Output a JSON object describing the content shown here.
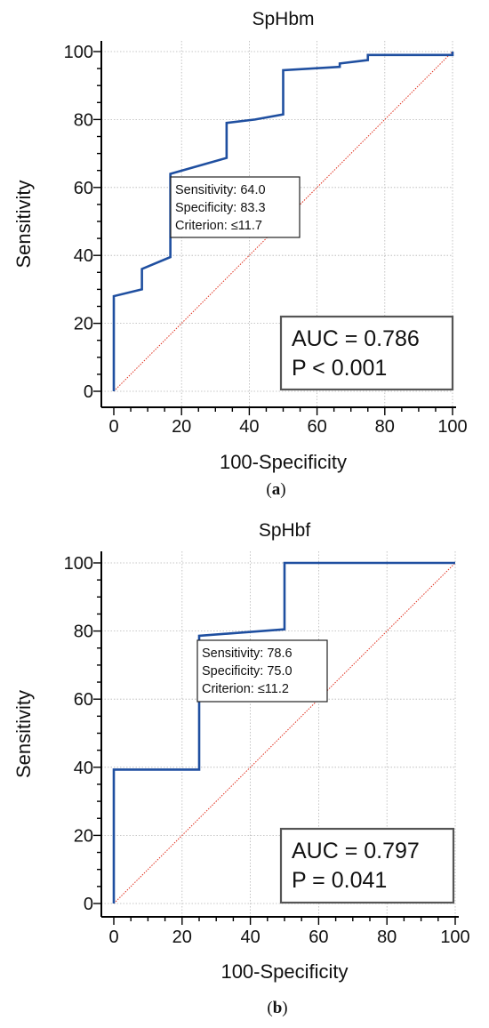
{
  "chart_data": [
    {
      "type": "line",
      "title": "SpHbm",
      "panel_label": "a",
      "xlabel": "100-Specificity",
      "ylabel": "Sensitivity",
      "xlim": [
        0,
        100
      ],
      "ylim": [
        0,
        100
      ],
      "xticks": [
        "0",
        "20",
        "40",
        "60",
        "80",
        "100"
      ],
      "yticks": [
        "0",
        "20",
        "40",
        "60",
        "80",
        "100"
      ],
      "grid": true,
      "series": [
        {
          "role": "roc",
          "color": "#1f4fa0",
          "x": [
            0,
            0,
            8.3,
            8.3,
            16.7,
            16.7,
            33.3,
            33.3,
            41.7,
            50,
            50,
            66.7,
            66.7,
            75,
            75,
            100,
            100
          ],
          "y": [
            0,
            28,
            30,
            36,
            39.5,
            64,
            68.7,
            79,
            80,
            81.5,
            94.5,
            95.5,
            96.5,
            97.5,
            99,
            99,
            100
          ]
        },
        {
          "role": "reference",
          "color": "#e0301e",
          "x": [
            0,
            100
          ],
          "y": [
            0,
            100
          ]
        }
      ],
      "annotation": {
        "lines": [
          "Sensitivity: 64.0",
          "Specificity: 83.3",
          "Criterion: ≤11.7"
        ],
        "point": [
          16.7,
          64
        ]
      },
      "stats": [
        "AUC = 0.786",
        "P < 0.001"
      ]
    },
    {
      "type": "line",
      "title": "SpHbf",
      "panel_label": "b",
      "xlabel": "100-Specificity",
      "ylabel": "Sensitivity",
      "xlim": [
        0,
        100
      ],
      "ylim": [
        0,
        100
      ],
      "xticks": [
        "0",
        "20",
        "40",
        "60",
        "80",
        "100"
      ],
      "yticks": [
        "0",
        "20",
        "40",
        "60",
        "80",
        "100"
      ],
      "grid": true,
      "series": [
        {
          "role": "roc",
          "color": "#1f4fa0",
          "x": [
            0,
            0,
            25,
            25,
            50,
            50,
            100
          ],
          "y": [
            0,
            39.3,
            39.3,
            78.6,
            80.5,
            100,
            100
          ]
        },
        {
          "role": "reference",
          "color": "#e0301e",
          "x": [
            0,
            100
          ],
          "y": [
            0,
            100
          ]
        }
      ],
      "annotation": {
        "lines": [
          "Sensitivity: 78.6",
          "Specificity: 75.0",
          "Criterion: ≤11.2"
        ],
        "point": [
          25,
          78.6
        ]
      },
      "stats": [
        "AUC = 0.797",
        "P = 0.041"
      ]
    }
  ]
}
